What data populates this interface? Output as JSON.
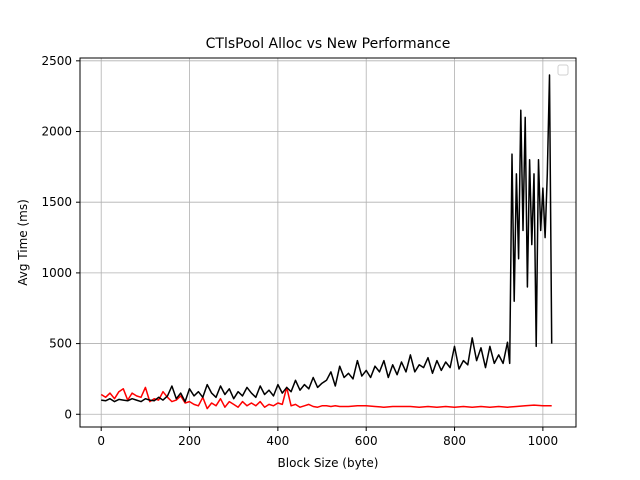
{
  "chart_data": {
    "type": "line",
    "title": "CTlsPool Alloc vs New Performance",
    "xlabel": "Block Size (byte)",
    "ylabel": "Avg Time (ms)",
    "xlim": [
      -48,
      1075
    ],
    "ylim": [
      -90,
      2520
    ],
    "xticks": [
      0,
      200,
      400,
      600,
      800,
      1000
    ],
    "yticks": [
      0,
      500,
      1000,
      1500,
      2000,
      2500
    ],
    "grid": true,
    "legend": {
      "placement": "upper-right",
      "entries": []
    },
    "series": [
      {
        "color": "#ff0000",
        "x": [
          0,
          10,
          20,
          30,
          40,
          50,
          60,
          70,
          80,
          90,
          100,
          110,
          120,
          130,
          140,
          150,
          160,
          170,
          180,
          190,
          200,
          210,
          220,
          230,
          240,
          250,
          260,
          270,
          280,
          290,
          300,
          310,
          320,
          330,
          340,
          350,
          360,
          370,
          380,
          390,
          400,
          410,
          420,
          430,
          440,
          450,
          460,
          470,
          480,
          490,
          500,
          510,
          520,
          530,
          540,
          560,
          580,
          600,
          620,
          640,
          660,
          680,
          700,
          720,
          740,
          760,
          780,
          800,
          820,
          840,
          860,
          880,
          900,
          920,
          940,
          960,
          980,
          1000,
          1020
        ],
        "y": [
          140,
          120,
          150,
          110,
          160,
          180,
          100,
          150,
          130,
          120,
          190,
          90,
          110,
          100,
          160,
          120,
          90,
          100,
          130,
          80,
          90,
          70,
          60,
          120,
          40,
          80,
          60,
          110,
          50,
          90,
          70,
          50,
          90,
          60,
          80,
          60,
          90,
          50,
          70,
          60,
          80,
          70,
          190,
          60,
          70,
          50,
          60,
          70,
          55,
          50,
          60,
          60,
          55,
          60,
          55,
          55,
          60,
          60,
          55,
          50,
          55,
          55,
          55,
          50,
          55,
          50,
          55,
          50,
          55,
          50,
          55,
          50,
          55,
          50,
          55,
          60,
          65,
          60,
          60
        ]
      },
      {
        "color": "#000000",
        "x": [
          0,
          10,
          20,
          30,
          40,
          50,
          60,
          70,
          80,
          90,
          100,
          110,
          120,
          130,
          140,
          150,
          160,
          170,
          180,
          190,
          200,
          210,
          220,
          230,
          240,
          250,
          260,
          270,
          280,
          290,
          300,
          310,
          320,
          330,
          340,
          350,
          360,
          370,
          380,
          390,
          400,
          410,
          420,
          430,
          440,
          450,
          460,
          470,
          480,
          490,
          500,
          510,
          520,
          530,
          540,
          550,
          560,
          570,
          580,
          590,
          600,
          610,
          620,
          630,
          640,
          650,
          660,
          670,
          680,
          690,
          700,
          710,
          720,
          730,
          740,
          750,
          760,
          770,
          780,
          790,
          800,
          810,
          820,
          830,
          840,
          850,
          860,
          870,
          880,
          890,
          900,
          910,
          920,
          925,
          930,
          935,
          940,
          945,
          950,
          955,
          960,
          965,
          970,
          975,
          980,
          985,
          990,
          995,
          1000,
          1005,
          1010,
          1015,
          1020
        ],
        "y": [
          100,
          95,
          110,
          90,
          105,
          100,
          95,
          110,
          100,
          90,
          110,
          100,
          95,
          120,
          100,
          130,
          200,
          110,
          150,
          90,
          180,
          130,
          160,
          120,
          210,
          150,
          120,
          200,
          140,
          180,
          110,
          160,
          130,
          190,
          150,
          120,
          200,
          140,
          170,
          130,
          210,
          150,
          190,
          160,
          240,
          170,
          210,
          180,
          260,
          190,
          220,
          240,
          300,
          200,
          340,
          260,
          290,
          250,
          380,
          270,
          310,
          260,
          340,
          300,
          380,
          260,
          350,
          280,
          370,
          300,
          420,
          300,
          350,
          330,
          400,
          290,
          380,
          310,
          370,
          330,
          480,
          320,
          380,
          350,
          540,
          380,
          470,
          330,
          480,
          360,
          420,
          360,
          510,
          360,
          1840,
          800,
          1700,
          1100,
          2150,
          1300,
          2100,
          900,
          1800,
          1200,
          1700,
          480,
          1800,
          1300,
          1600,
          1250,
          1700,
          2400,
          500
        ]
      }
    ]
  }
}
